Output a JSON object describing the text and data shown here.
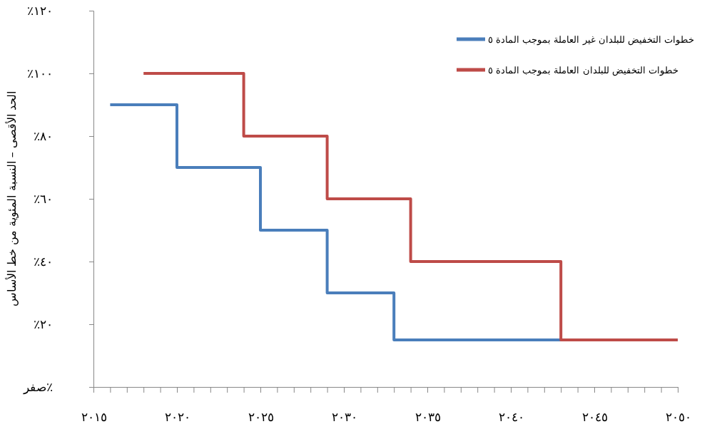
{
  "chart_data": {
    "type": "step",
    "ylabel": "الحد الأقصى – النسبة المئوية من خط الأساس",
    "series": [
      {
        "name": "خطوات التخفيض للبلدان غير العاملة بموجب المادة ٥",
        "color": "#4a7ebb",
        "x": [
          2016,
          2020,
          2025,
          2029,
          2033,
          2043
        ],
        "values": [
          90,
          70,
          50,
          30,
          15,
          15
        ]
      },
      {
        "name": "خطوات التخفيض للبلدان العاملة بموجب المادة ٥",
        "color": "#be4b48",
        "x": [
          2018,
          2024,
          2029,
          2034,
          2043,
          2050
        ],
        "values": [
          100,
          80,
          60,
          40,
          15,
          15
        ]
      }
    ],
    "xlim": [
      2015,
      2050
    ],
    "xticks": [
      {
        "value": 2015,
        "label": "٢٠١٥"
      },
      {
        "value": 2016,
        "label": null
      },
      {
        "value": 2017,
        "label": null
      },
      {
        "value": 2018,
        "label": null
      },
      {
        "value": 2019,
        "label": null
      },
      {
        "value": 2020,
        "label": "٢٠٢٠"
      },
      {
        "value": 2021,
        "label": null
      },
      {
        "value": 2022,
        "label": null
      },
      {
        "value": 2023,
        "label": null
      },
      {
        "value": 2024,
        "label": null
      },
      {
        "value": 2025,
        "label": "٢٠٢٥"
      },
      {
        "value": 2026,
        "label": null
      },
      {
        "value": 2027,
        "label": null
      },
      {
        "value": 2028,
        "label": null
      },
      {
        "value": 2029,
        "label": null
      },
      {
        "value": 2030,
        "label": "٢٠٣٠"
      },
      {
        "value": 2031,
        "label": null
      },
      {
        "value": 2032,
        "label": null
      },
      {
        "value": 2033,
        "label": null
      },
      {
        "value": 2034,
        "label": null
      },
      {
        "value": 2035,
        "label": "٢٠٣٥"
      },
      {
        "value": 2036,
        "label": null
      },
      {
        "value": 2037,
        "label": null
      },
      {
        "value": 2038,
        "label": null
      },
      {
        "value": 2039,
        "label": null
      },
      {
        "value": 2040,
        "label": "٢٠٤٠"
      },
      {
        "value": 2041,
        "label": null
      },
      {
        "value": 2042,
        "label": null
      },
      {
        "value": 2043,
        "label": null
      },
      {
        "value": 2044,
        "label": null
      },
      {
        "value": 2045,
        "label": "٢٠٤٥"
      },
      {
        "value": 2046,
        "label": null
      },
      {
        "value": 2047,
        "label": null
      },
      {
        "value": 2048,
        "label": null
      },
      {
        "value": 2049,
        "label": null
      },
      {
        "value": 2050,
        "label": "٢٠٥٠"
      }
    ],
    "ylim": [
      0,
      120
    ],
    "yticks": [
      {
        "value": 0,
        "label": "صفر٪"
      },
      {
        "value": 20,
        "label": "٪٢٠"
      },
      {
        "value": 40,
        "label": "٪٤٠"
      },
      {
        "value": 60,
        "label": "٪٦٠"
      },
      {
        "value": 80,
        "label": "٪٨٠"
      },
      {
        "value": 100,
        "label": "٪١٠٠"
      },
      {
        "value": 120,
        "label": "٪١٢٠"
      }
    ],
    "grid": false,
    "legend": "top right",
    "marker": "none",
    "line_style": "solid"
  }
}
